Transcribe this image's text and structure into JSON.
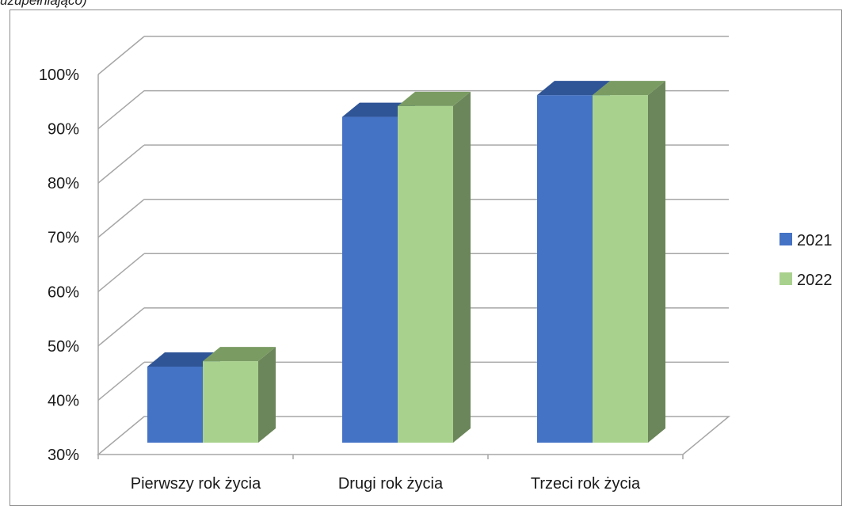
{
  "caption": "uzupełniająco)",
  "chart_data": {
    "type": "bar",
    "categories": [
      "Pierwszy rok życia",
      "Drugi rok życia",
      "Trzeci rok życia"
    ],
    "series": [
      {
        "name": "2021",
        "values": [
          44,
          90,
          94
        ],
        "color": "#4472C4",
        "top_color": "#2F5597",
        "side_color": "#2F5597"
      },
      {
        "name": "2022",
        "values": [
          45,
          92,
          94
        ],
        "color": "#A9D18E",
        "top_color": "#7A9C63",
        "side_color": "#6B865A"
      }
    ],
    "ylim": [
      30,
      100
    ],
    "yticks": [
      "30%",
      "40%",
      "50%",
      "60%",
      "70%",
      "80%",
      "90%",
      "100%"
    ],
    "y_unit": "%",
    "grid": true,
    "legend": "right",
    "style": "3d-column"
  }
}
